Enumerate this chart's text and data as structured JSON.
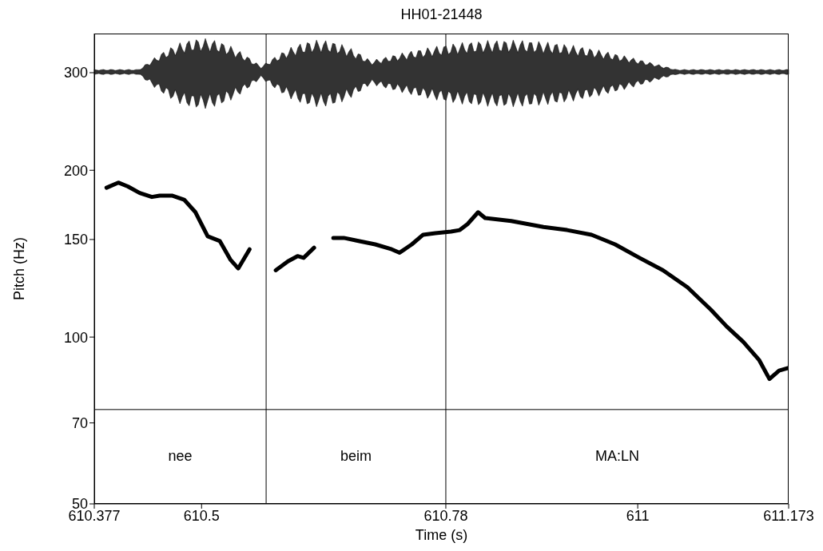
{
  "chart_data": {
    "type": "line",
    "title": "HH01-21448",
    "xlabel": "Time (s)",
    "ylabel": "Pitch (Hz)",
    "x": [
      610.391,
      610.4045,
      610.4155,
      610.429,
      610.443,
      610.452,
      610.466,
      610.48,
      610.493,
      610.507,
      610.521,
      610.533,
      610.542,
      610.555,
      610.57,
      610.585,
      610.599,
      610.61,
      610.617,
      610.629,
      610.64,
      610.651,
      610.663,
      610.681,
      610.699,
      610.718,
      610.727,
      610.741,
      610.754,
      610.768,
      610.786,
      610.796,
      610.805,
      610.817,
      610.825,
      610.855,
      610.892,
      610.919,
      610.947,
      610.974,
      611.002,
      611.029,
      611.057,
      611.084,
      611.102,
      611.121,
      611.139,
      611.151,
      611.162,
      611.173
    ],
    "series": [
      {
        "color": "#000000",
        "values": [
          186,
          190,
          187,
          182,
          179,
          180,
          180,
          177,
          168,
          152,
          149,
          138,
          133,
          144,
          null,
          132,
          137,
          140,
          139,
          145,
          null,
          151,
          151,
          149,
          147,
          144,
          142,
          147,
          153,
          154,
          155,
          156,
          160,
          168,
          164,
          162,
          158,
          156,
          153,
          147,
          139,
          132,
          123,
          112,
          104.5,
          98,
          91,
          84,
          87,
          88
        ]
      }
    ],
    "xlim": [
      610.377,
      611.173
    ],
    "xticks": [
      610.377,
      610.5,
      610.78,
      611,
      611.173
    ],
    "ylim": [
      50,
      353
    ],
    "yticks": [
      50,
      70,
      100,
      150,
      200,
      300
    ],
    "log": "y",
    "marker": "none",
    "line_style": "solid",
    "grid": false,
    "ref_lines": [
      {
        "axis": "x",
        "value": 610.574,
        "color": "#000000"
      },
      {
        "axis": "x",
        "value": 610.78,
        "color": "#000000"
      },
      {
        "axis": "y",
        "value": 74,
        "color": "#000000"
      }
    ],
    "annotations": [
      "nee",
      "beim",
      "MA:LN"
    ]
  }
}
